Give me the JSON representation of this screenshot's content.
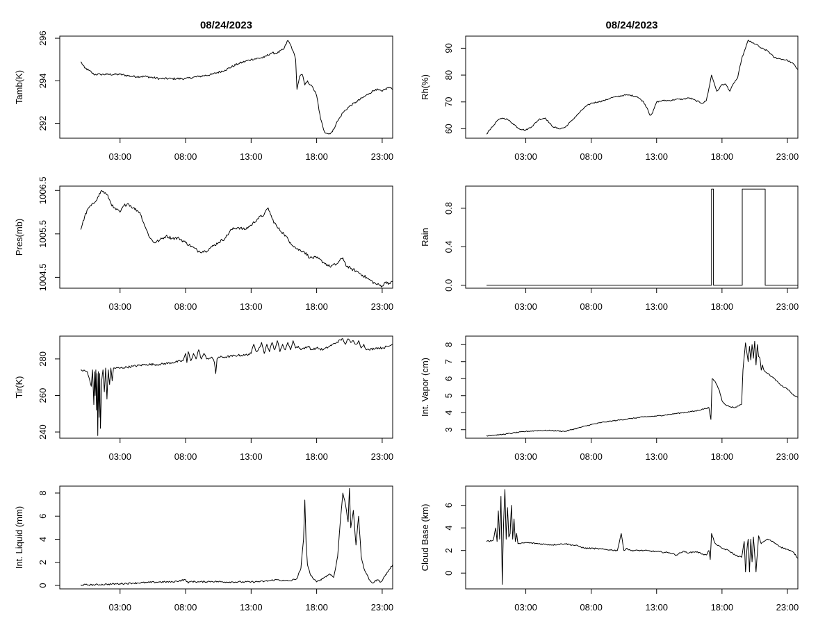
{
  "figure_date": "08/24/2023",
  "chart_data": [
    {
      "id": "tamb",
      "type": "line",
      "title": "08/24/2023",
      "ylabel": "Tamb(K)",
      "ylim": [
        291.3,
        296.1
      ],
      "yticks": [
        292,
        294,
        296
      ],
      "ytick_labels": [
        "292",
        "294",
        "296"
      ],
      "xlim": [
        -1.6,
        23.8
      ],
      "xticks": [
        3,
        8,
        13,
        18,
        23
      ],
      "xtick_labels": [
        "03:00",
        "08:00",
        "13:00",
        "18:00",
        "23:00"
      ],
      "noise": 0.05,
      "x": [
        0.0,
        0.3,
        0.6,
        1.0,
        1.5,
        2.0,
        3.0,
        4.0,
        5.0,
        6.0,
        7.0,
        8.0,
        9.0,
        10.0,
        11.0,
        12.0,
        13.0,
        14.0,
        14.5,
        15.0,
        15.5,
        15.8,
        16.0,
        16.2,
        16.4,
        16.5,
        16.7,
        16.9,
        17.1,
        17.3,
        17.5,
        17.7,
        18.0,
        18.3,
        18.6,
        18.9,
        19.2,
        19.5,
        19.8,
        20.0,
        20.5,
        21.0,
        21.5,
        22.0,
        22.5,
        23.0,
        23.5,
        23.8
      ],
      "y": [
        294.9,
        294.6,
        294.5,
        294.3,
        294.3,
        294.3,
        294.3,
        294.2,
        294.2,
        294.1,
        294.1,
        294.1,
        294.2,
        294.3,
        294.5,
        294.8,
        295.0,
        295.1,
        295.3,
        295.3,
        295.5,
        295.9,
        295.7,
        295.4,
        295.0,
        293.6,
        294.2,
        294.3,
        293.8,
        294.0,
        293.8,
        293.7,
        293.3,
        292.2,
        291.6,
        291.5,
        291.6,
        292.0,
        292.3,
        292.5,
        292.8,
        293.0,
        293.2,
        293.4,
        293.6,
        293.5,
        293.7,
        293.6
      ]
    },
    {
      "id": "rh",
      "type": "line",
      "title": "08/24/2023",
      "ylabel": "Rh(%)",
      "ylim": [
        56.5,
        94.5
      ],
      "yticks": [
        60,
        70,
        80,
        90
      ],
      "ytick_labels": [
        "60",
        "70",
        "80",
        "90"
      ],
      "xlim": [
        -1.6,
        23.8
      ],
      "xticks": [
        3,
        8,
        13,
        18,
        23
      ],
      "xtick_labels": [
        "03:00",
        "08:00",
        "13:00",
        "18:00",
        "23:00"
      ],
      "noise": 0.25,
      "x": [
        0.0,
        0.2,
        0.5,
        0.8,
        1.2,
        1.6,
        2.0,
        2.5,
        3.0,
        3.5,
        4.0,
        4.5,
        5.0,
        5.5,
        6.0,
        6.5,
        7.0,
        7.5,
        8.0,
        8.5,
        9.0,
        9.5,
        10.0,
        10.5,
        11.0,
        11.5,
        12.0,
        12.3,
        12.5,
        12.7,
        13.0,
        13.5,
        14.0,
        14.5,
        15.0,
        15.5,
        16.0,
        16.5,
        16.8,
        17.0,
        17.2,
        17.4,
        17.6,
        17.8,
        18.0,
        18.3,
        18.6,
        18.9,
        19.2,
        19.5,
        19.8,
        20.0,
        20.3,
        20.6,
        21.0,
        21.5,
        22.0,
        22.5,
        23.0,
        23.5,
        23.8
      ],
      "y": [
        58,
        59.5,
        61,
        63,
        64,
        63.5,
        62,
        60,
        59.5,
        61,
        63.5,
        64,
        61,
        60,
        60.5,
        63,
        65.5,
        68,
        69.5,
        70,
        70.5,
        71.5,
        72,
        72.5,
        72.5,
        72,
        70,
        67.5,
        65,
        66,
        70,
        70.5,
        70.5,
        71,
        71,
        71.5,
        70.5,
        69.5,
        70.5,
        75,
        80,
        77,
        74,
        75,
        76.5,
        76.5,
        74,
        77,
        79,
        86,
        90,
        93,
        92,
        91.5,
        90,
        89,
        86.5,
        86,
        85.5,
        84,
        82
      ]
    },
    {
      "id": "pres",
      "type": "line",
      "ylabel": "Pres(mb)",
      "ylim": [
        1004.25,
        1006.6
      ],
      "yticks": [
        1004.5,
        1005.5,
        1006.5
      ],
      "ytick_labels": [
        "1004.5",
        "1005.5",
        "1006.5"
      ],
      "xlim": [
        -1.6,
        23.8
      ],
      "xticks": [
        3,
        8,
        13,
        18,
        23
      ],
      "xtick_labels": [
        "03:00",
        "08:00",
        "13:00",
        "18:00",
        "23:00"
      ],
      "noise": 0.035,
      "x": [
        0.0,
        0.3,
        0.6,
        1.0,
        1.3,
        1.6,
        2.0,
        2.5,
        3.0,
        3.3,
        3.6,
        4.0,
        4.5,
        5.0,
        5.3,
        5.6,
        6.0,
        6.5,
        7.0,
        7.5,
        8.0,
        8.5,
        9.0,
        9.5,
        10.0,
        10.5,
        11.0,
        11.5,
        12.0,
        12.5,
        13.0,
        13.5,
        14.0,
        14.3,
        14.6,
        15.0,
        15.5,
        16.0,
        16.5,
        17.0,
        17.5,
        18.0,
        18.5,
        19.0,
        19.5,
        20.0,
        20.3,
        20.6,
        21.0,
        21.5,
        22.0,
        22.5,
        23.0,
        23.3,
        23.6,
        23.8
      ],
      "y": [
        1005.6,
        1005.9,
        1006.1,
        1006.2,
        1006.35,
        1006.5,
        1006.4,
        1006.1,
        1006.0,
        1006.15,
        1006.2,
        1006.1,
        1006.0,
        1005.6,
        1005.4,
        1005.3,
        1005.35,
        1005.45,
        1005.4,
        1005.4,
        1005.3,
        1005.2,
        1005.1,
        1005.1,
        1005.2,
        1005.3,
        1005.4,
        1005.6,
        1005.65,
        1005.6,
        1005.7,
        1005.85,
        1005.95,
        1006.1,
        1005.85,
        1005.65,
        1005.5,
        1005.3,
        1005.15,
        1005.1,
        1004.95,
        1004.95,
        1004.85,
        1004.75,
        1004.8,
        1004.95,
        1004.75,
        1004.7,
        1004.65,
        1004.55,
        1004.45,
        1004.35,
        1004.3,
        1004.4,
        1004.35,
        1004.4
      ]
    },
    {
      "id": "rain",
      "type": "line",
      "ylabel": "Rain",
      "step": true,
      "ylim": [
        -0.03,
        1.03
      ],
      "yticks": [
        0.0,
        0.4,
        0.8
      ],
      "ytick_labels": [
        "0.0",
        "0.4",
        "0.8"
      ],
      "xlim": [
        -1.6,
        23.8
      ],
      "xticks": [
        3,
        8,
        13,
        18,
        23
      ],
      "xtick_labels": [
        "03:00",
        "08:00",
        "13:00",
        "18:00",
        "23:00"
      ],
      "noise": 0,
      "x": [
        0.0,
        17.2,
        17.2,
        17.35,
        17.35,
        19.55,
        19.55,
        21.3,
        21.3,
        23.8
      ],
      "y": [
        0,
        0,
        1,
        1,
        0,
        0,
        1,
        1,
        0,
        0
      ]
    },
    {
      "id": "tir",
      "type": "line",
      "ylabel": "Tir(K)",
      "ylim": [
        236.6,
        292.5
      ],
      "yticks": [
        240,
        260,
        280
      ],
      "ytick_labels": [
        "240",
        "260",
        "280"
      ],
      "xlim": [
        -1.6,
        23.8
      ],
      "xticks": [
        3,
        8,
        13,
        18,
        23
      ],
      "xtick_labels": [
        "03:00",
        "08:00",
        "13:00",
        "18:00",
        "23:00"
      ],
      "noise": 0.6,
      "x": [
        0.0,
        0.5,
        0.8,
        0.9,
        1.0,
        1.05,
        1.1,
        1.15,
        1.2,
        1.25,
        1.3,
        1.35,
        1.4,
        1.45,
        1.5,
        1.6,
        1.7,
        1.8,
        1.9,
        2.0,
        2.1,
        2.2,
        2.3,
        2.4,
        2.5,
        3.0,
        4.0,
        5.0,
        6.0,
        7.0,
        7.8,
        8.0,
        8.1,
        8.2,
        8.4,
        8.6,
        8.8,
        9.0,
        9.2,
        9.4,
        9.6,
        10.0,
        10.2,
        10.3,
        10.4,
        10.5,
        11.0,
        12.0,
        12.5,
        13.0,
        13.2,
        13.4,
        13.6,
        13.8,
        14.0,
        14.2,
        14.4,
        14.6,
        14.8,
        15.0,
        15.2,
        15.4,
        15.6,
        15.8,
        16.0,
        16.2,
        16.4,
        16.6,
        16.8,
        17.0,
        17.2,
        17.4,
        17.6,
        18.0,
        18.5,
        19.0,
        19.5,
        20.0,
        20.2,
        20.4,
        20.6,
        20.8,
        21.0,
        21.2,
        21.4,
        21.6,
        21.8,
        22.0,
        22.5,
        23.0,
        23.5,
        23.8
      ],
      "y": [
        274,
        273,
        265,
        274,
        255,
        273,
        260,
        274,
        252,
        272,
        238,
        273,
        248,
        272,
        242,
        268,
        274,
        262,
        275,
        258,
        274,
        266,
        275,
        268,
        275,
        275,
        276,
        277,
        277,
        278,
        279,
        283,
        278,
        284,
        279,
        283,
        280,
        285,
        280,
        283,
        280,
        281,
        278,
        272,
        280,
        281,
        281,
        282,
        282,
        283,
        288,
        284,
        286,
        289,
        283,
        288,
        284,
        289,
        285,
        290,
        284,
        288,
        285,
        289,
        285,
        290,
        286,
        287,
        285,
        286,
        286,
        287,
        285,
        286,
        285,
        287,
        289,
        291,
        288,
        291,
        289,
        290,
        288,
        290,
        286,
        288,
        285,
        285,
        286,
        286,
        287,
        288
      ]
    },
    {
      "id": "vapor",
      "type": "line",
      "ylabel": "Int. Vapor (cm)",
      "ylim": [
        2.5,
        8.5
      ],
      "yticks": [
        3,
        4,
        5,
        6,
        7,
        8
      ],
      "ytick_labels": [
        "3",
        "4",
        "5",
        "6",
        "7",
        "8"
      ],
      "xlim": [
        -1.6,
        23.8
      ],
      "xticks": [
        3,
        8,
        13,
        18,
        23
      ],
      "xtick_labels": [
        "03:00",
        "08:00",
        "13:00",
        "18:00",
        "23:00"
      ],
      "noise": 0.03,
      "x": [
        0.0,
        1.0,
        2.0,
        3.0,
        4.0,
        5.0,
        6.0,
        7.0,
        8.0,
        9.0,
        10.0,
        11.0,
        12.0,
        13.0,
        14.0,
        15.0,
        16.0,
        17.0,
        17.15,
        17.25,
        17.5,
        17.8,
        18.0,
        18.3,
        18.6,
        19.0,
        19.5,
        19.6,
        19.8,
        20.0,
        20.1,
        20.2,
        20.3,
        20.4,
        20.5,
        20.6,
        20.7,
        20.8,
        20.9,
        21.0,
        21.1,
        21.2,
        21.5,
        22.0,
        22.5,
        23.0,
        23.5,
        23.8
      ],
      "y": [
        2.65,
        2.7,
        2.8,
        2.9,
        2.95,
        2.95,
        2.9,
        3.1,
        3.3,
        3.45,
        3.55,
        3.65,
        3.75,
        3.8,
        3.9,
        4.0,
        4.1,
        4.3,
        3.6,
        6.0,
        5.8,
        5.3,
        4.7,
        4.45,
        4.35,
        4.3,
        4.5,
        6.5,
        8.1,
        7.0,
        7.9,
        7.1,
        8.0,
        7.2,
        8.2,
        6.8,
        8.0,
        7.3,
        7.2,
        6.5,
        6.8,
        6.5,
        6.3,
        6.0,
        5.6,
        5.4,
        5.0,
        4.9
      ]
    },
    {
      "id": "liquid",
      "type": "line",
      "ylabel": "Int. Liquid (mm)",
      "ylim": [
        -0.3,
        8.6
      ],
      "yticks": [
        0,
        2,
        4,
        6,
        8
      ],
      "ytick_labels": [
        "0",
        "2",
        "4",
        "6",
        "8"
      ],
      "xlim": [
        -1.6,
        23.8
      ],
      "xticks": [
        3,
        8,
        13,
        18,
        23
      ],
      "xtick_labels": [
        "03:00",
        "08:00",
        "13:00",
        "18:00",
        "23:00"
      ],
      "noise": 0.07,
      "x": [
        0.0,
        1.0,
        2.0,
        3.0,
        4.0,
        5.0,
        6.0,
        7.0,
        8.0,
        8.2,
        8.4,
        9.0,
        10.0,
        11.0,
        12.0,
        13.0,
        14.0,
        15.0,
        15.5,
        16.0,
        16.5,
        16.8,
        17.0,
        17.1,
        17.2,
        17.3,
        17.5,
        17.8,
        18.0,
        18.3,
        18.6,
        19.0,
        19.3,
        19.6,
        19.8,
        20.0,
        20.2,
        20.4,
        20.5,
        20.6,
        20.8,
        21.0,
        21.2,
        21.4,
        21.6,
        21.8,
        22.0,
        22.3,
        22.6,
        22.9,
        23.2,
        23.5,
        23.8
      ],
      "y": [
        0.05,
        0.05,
        0.1,
        0.15,
        0.2,
        0.25,
        0.3,
        0.3,
        0.5,
        0.2,
        0.35,
        0.3,
        0.35,
        0.3,
        0.3,
        0.3,
        0.35,
        0.5,
        0.4,
        0.4,
        0.6,
        1.5,
        4.0,
        7.4,
        3.5,
        1.8,
        1.0,
        0.5,
        0.3,
        0.5,
        0.7,
        1.0,
        0.7,
        2.5,
        5.5,
        8.0,
        7.0,
        5.5,
        8.4,
        5.0,
        6.5,
        3.5,
        6.0,
        2.5,
        1.5,
        1.0,
        0.5,
        0.2,
        0.5,
        0.3,
        0.8,
        1.3,
        1.8
      ]
    },
    {
      "id": "cloudbase",
      "type": "line",
      "ylabel": "Cloud Base (km)",
      "ylim": [
        -1.4,
        7.7
      ],
      "yticks": [
        0,
        2,
        4,
        6
      ],
      "ytick_labels": [
        "0",
        "2",
        "4",
        "6"
      ],
      "xlim": [
        -1.6,
        23.8
      ],
      "xticks": [
        3,
        8,
        13,
        18,
        23
      ],
      "xtick_labels": [
        "03:00",
        "08:00",
        "13:00",
        "18:00",
        "23:00"
      ],
      "noise": 0.06,
      "x": [
        0.0,
        0.5,
        0.7,
        0.8,
        0.9,
        1.0,
        1.1,
        1.2,
        1.3,
        1.4,
        1.5,
        1.6,
        1.7,
        1.8,
        1.9,
        2.0,
        2.1,
        2.2,
        2.3,
        2.4,
        2.6,
        3.0,
        4.0,
        5.0,
        6.0,
        7.0,
        7.5,
        8.0,
        9.0,
        10.0,
        10.3,
        10.5,
        10.7,
        11.0,
        12.0,
        13.0,
        14.0,
        14.5,
        15.0,
        15.5,
        16.0,
        16.5,
        16.8,
        17.0,
        17.1,
        17.2,
        17.4,
        17.6,
        18.0,
        18.5,
        19.0,
        19.5,
        19.7,
        19.8,
        19.9,
        20.0,
        20.1,
        20.2,
        20.3,
        20.4,
        20.6,
        20.8,
        21.0,
        21.2,
        21.5,
        22.0,
        22.5,
        23.0,
        23.5,
        23.8
      ],
      "y": [
        2.8,
        2.9,
        4.0,
        2.8,
        5.5,
        3.0,
        6.8,
        -1.0,
        4.5,
        7.4,
        3.0,
        5.8,
        3.2,
        3.5,
        6.0,
        3.0,
        4.8,
        2.8,
        3.5,
        2.6,
        2.6,
        2.7,
        2.6,
        2.5,
        2.6,
        2.4,
        2.2,
        2.2,
        2.1,
        2.0,
        3.5,
        2.0,
        2.2,
        2.0,
        2.0,
        1.9,
        1.8,
        1.6,
        1.9,
        1.8,
        1.9,
        1.7,
        1.6,
        2.0,
        1.2,
        3.5,
        2.8,
        2.5,
        2.2,
        2.0,
        1.6,
        1.4,
        2.8,
        0.1,
        2.0,
        3.0,
        0.1,
        3.0,
        1.0,
        3.2,
        0.1,
        3.3,
        2.6,
        2.8,
        3.0,
        2.7,
        2.3,
        2.1,
        1.8,
        1.3
      ]
    }
  ]
}
